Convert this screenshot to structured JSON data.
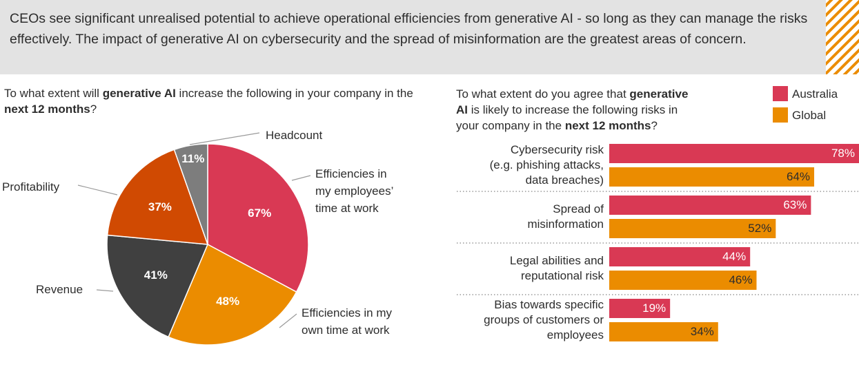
{
  "header": {
    "text": "CEOs see significant unrealised potential to achieve operational efficiencies from generative AI - so long as they can manage the risks effectively. The impact of generative AI on cybersecurity and the spread of misinformation are the greatest areas of concern."
  },
  "chart_data": [
    {
      "type": "pie",
      "subtitle": [
        {
          "text": "To what extent will ",
          "bold": false
        },
        {
          "text": "generative AI",
          "bold": true
        },
        {
          "text": " increase the following in your company in the ",
          "bold": false
        },
        {
          "text": "next 12 months",
          "bold": true
        },
        {
          "text": "?",
          "bold": false
        }
      ],
      "categories": [
        "Efficiencies in\nmy employees’\ntime at work",
        "Efficiencies in my\nown time at work",
        "Revenue",
        "Profitability",
        "Headcount"
      ],
      "values": [
        67,
        48,
        41,
        37,
        11
      ],
      "value_labels": [
        "67%",
        "48%",
        "41%",
        "37%",
        "11%"
      ],
      "colors": [
        "#d93954",
        "#eb8c00",
        "#404040",
        "#d04a02",
        "#7d7d7d"
      ]
    },
    {
      "type": "hbar",
      "subtitle": [
        {
          "text": "To what extent do you agree that ",
          "bold": false
        },
        {
          "text": "generative\nAI",
          "bold": true
        },
        {
          "text": " is likely to increase the following risks in\nyour company in the ",
          "bold": false
        },
        {
          "text": "next 12 months",
          "bold": true
        },
        {
          "text": "?",
          "bold": false
        }
      ],
      "categories": [
        "Cybersecurity risk\n(e.g. phishing attacks,\ndata breaches)",
        "Spread of\nmisinformation",
        "Legal abilities and\nreputational risk",
        "Bias towards specific\ngroups of customers or\nemployees"
      ],
      "series": [
        {
          "name": "Australia",
          "color": "#d93954",
          "values": [
            78,
            63,
            44,
            19
          ],
          "value_labels": [
            "78%",
            "63%",
            "44%",
            "19%"
          ]
        },
        {
          "name": "Global",
          "color": "#eb8c00",
          "values": [
            64,
            52,
            46,
            34
          ],
          "value_labels": [
            "64%",
            "52%",
            "46%",
            "34%"
          ]
        }
      ]
    }
  ]
}
